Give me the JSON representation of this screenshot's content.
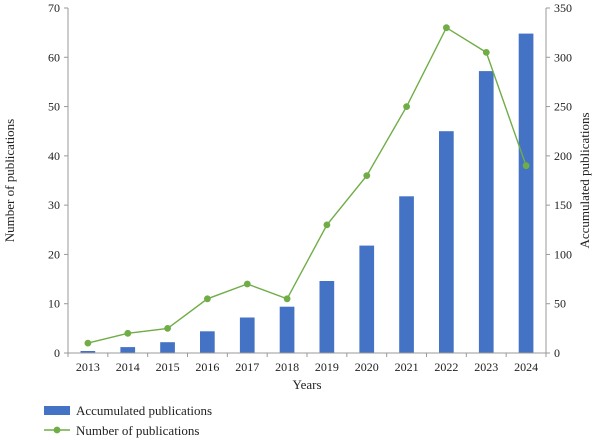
{
  "chart_data": {
    "type": "bar",
    "categories": [
      "2013",
      "2014",
      "2015",
      "2016",
      "2017",
      "2018",
      "2019",
      "2020",
      "2021",
      "2022",
      "2023",
      "2024"
    ],
    "series": [
      {
        "name": "Accumulated publications",
        "kind": "bar",
        "axis": "right",
        "color": "#4472c4",
        "values": [
          2,
          6,
          11,
          22,
          36,
          47,
          73,
          109,
          159,
          225,
          286,
          324
        ]
      },
      {
        "name": "Number of publications",
        "kind": "line",
        "axis": "left",
        "color": "#70ad47",
        "values": [
          2,
          4,
          5,
          11,
          14,
          11,
          26,
          36,
          50,
          66,
          61,
          38
        ]
      }
    ],
    "xlabel": "Years",
    "ylabel": "Number of publications",
    "y2label": "Accumulated publications",
    "ylim": [
      0,
      70
    ],
    "y2lim": [
      0,
      350
    ],
    "yticks": [
      "0",
      "10",
      "20",
      "30",
      "40",
      "50",
      "60",
      "70"
    ],
    "y2ticks": [
      "0",
      "50",
      "100",
      "150",
      "200",
      "250",
      "300",
      "350"
    ],
    "legend_position": "bottom-left",
    "grid": false
  }
}
